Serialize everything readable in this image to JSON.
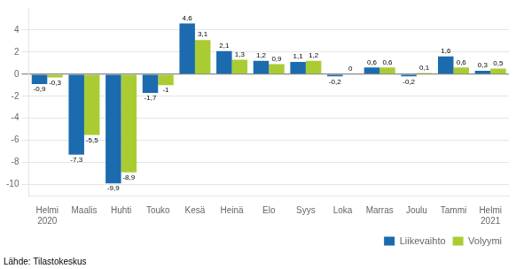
{
  "chart_data": {
    "type": "bar",
    "categories": [
      "Helmi\n2020",
      "Maalis",
      "Huhti",
      "Touko",
      "Kesä",
      "Heinä",
      "Elo",
      "Syys",
      "Loka",
      "Marras",
      "Joulu",
      "Tammi",
      "Helmi\n2021"
    ],
    "series": [
      {
        "name": "Liikevaihto",
        "color": "#1B6BAE",
        "values": [
          -0.9,
          -7.3,
          -9.9,
          -1.7,
          4.6,
          2.1,
          1.2,
          1.1,
          -0.2,
          0.6,
          -0.2,
          1.6,
          0.3
        ],
        "value_labels": [
          "-0,9",
          "-7,3",
          "-9,9",
          "-1,7",
          "4,6",
          "2,1",
          "1,2",
          "1,1",
          "-0,2",
          "0,6",
          "-0,2",
          "1,6",
          "0,3"
        ]
      },
      {
        "name": "Volyymi",
        "color": "#AACC33",
        "values": [
          -0.3,
          -5.5,
          -8.9,
          -1.0,
          3.1,
          1.3,
          0.9,
          1.2,
          0.0,
          0.6,
          0.1,
          0.6,
          0.5
        ],
        "value_labels": [
          "-0,3",
          "-5,5",
          "-8,9",
          "-1",
          "3,1",
          "1,3",
          "0,9",
          "1,2",
          "0",
          "0,6",
          "0,1",
          "0,6",
          "0,5"
        ]
      }
    ],
    "ylim": [
      -11,
      6
    ],
    "yticks": [
      -10,
      -8,
      -6,
      -4,
      -2,
      0,
      2,
      4
    ],
    "grid": true,
    "legend": "lower right",
    "data_labels": true,
    "annotations": [
      "Lähde: Tilastokeskus"
    ]
  }
}
